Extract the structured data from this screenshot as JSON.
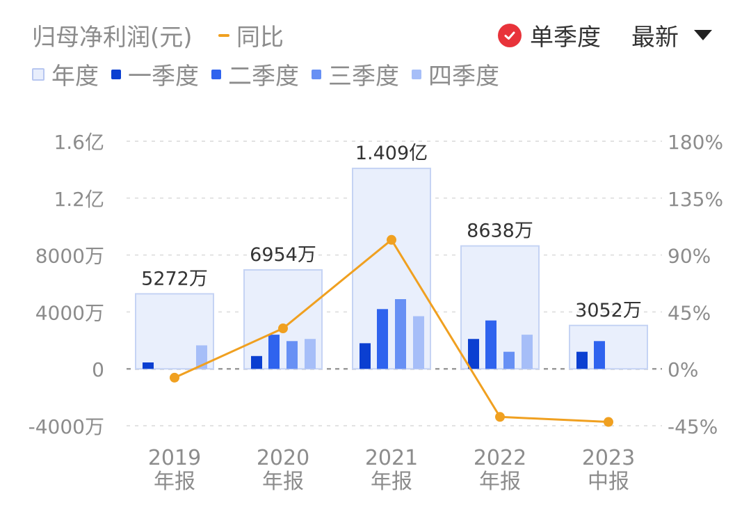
{
  "header": {
    "title": "归母净利润(元)",
    "yoy_label": "同比",
    "single_quarter_label": "单季度",
    "sort_label": "最新"
  },
  "legend": [
    {
      "label": "年度",
      "color": "#e8eefc",
      "border": "#b7c6f0"
    },
    {
      "label": "一季度",
      "color": "#0b3fd1"
    },
    {
      "label": "二季度",
      "color": "#2f63ee"
    },
    {
      "label": "三季度",
      "color": "#6790f4"
    },
    {
      "label": "四季度",
      "color": "#a6bef8"
    }
  ],
  "chart_data": {
    "type": "bar",
    "categories": [
      [
        "2019",
        "年报"
      ],
      [
        "2020",
        "年报"
      ],
      [
        "2021",
        "年报"
      ],
      [
        "2022",
        "年报"
      ],
      [
        "2023",
        "中报"
      ]
    ],
    "annual": {
      "values": [
        5272,
        6954,
        14090,
        8638,
        3052
      ],
      "labels": [
        "5272万",
        "6954万",
        "1.409亿",
        "8638万",
        "3052万"
      ]
    },
    "quarters": [
      {
        "name": "一季度",
        "values": [
          450,
          900,
          1800,
          2100,
          1200
        ]
      },
      {
        "name": "二季度",
        "values": [
          null,
          2400,
          4200,
          3400,
          1950
        ]
      },
      {
        "name": "三季度",
        "values": [
          null,
          1950,
          4900,
          1200,
          null
        ]
      },
      {
        "name": "四季度",
        "values": [
          1650,
          2100,
          3700,
          2400,
          null
        ]
      }
    ],
    "yoy": {
      "name": "同比",
      "values": [
        -7,
        32,
        102,
        -38,
        -42
      ]
    },
    "left_axis": {
      "min": -4000,
      "max": 16000,
      "ticks": [
        -4000,
        0,
        4000,
        8000,
        12000,
        16000
      ],
      "tick_labels": [
        "-4000万",
        "0",
        "4000万",
        "8000万",
        "1.2亿",
        "1.6亿"
      ]
    },
    "right_axis": {
      "min": -45,
      "max": 180,
      "ticks": [
        -45,
        0,
        45,
        90,
        135,
        180
      ],
      "tick_labels": [
        "-45%",
        "0%",
        "45%",
        "90%",
        "135%",
        "180%"
      ]
    },
    "colors": {
      "yoy_line": "#f0a020",
      "grid": "#e2e2e2",
      "zero_line": "#9a9a9a"
    }
  }
}
